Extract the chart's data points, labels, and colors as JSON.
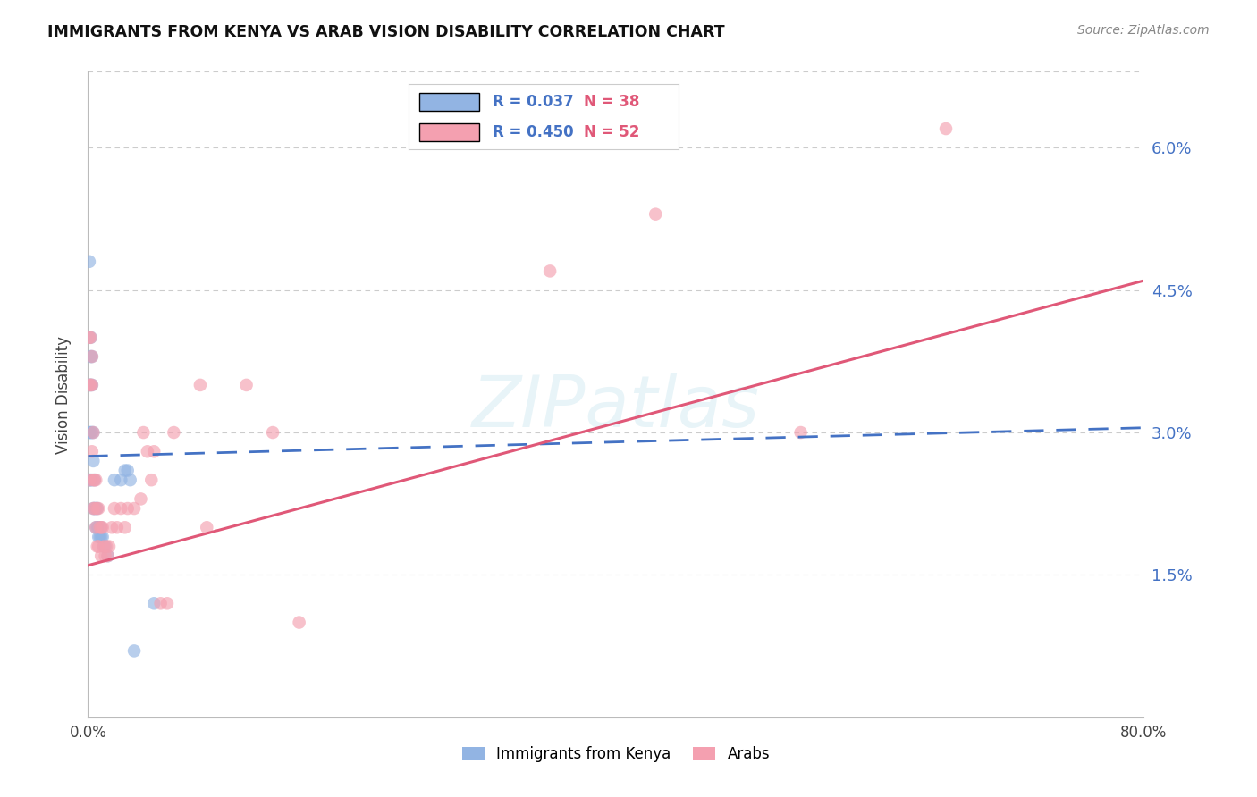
{
  "title": "IMMIGRANTS FROM KENYA VS ARAB VISION DISABILITY CORRELATION CHART",
  "source": "Source: ZipAtlas.com",
  "ylabel": "Vision Disability",
  "x_min": 0.0,
  "x_max": 0.8,
  "y_min": 0.0,
  "y_max": 0.068,
  "y_ticks": [
    0.0,
    0.015,
    0.03,
    0.045,
    0.06
  ],
  "y_tick_labels": [
    "",
    "1.5%",
    "3.0%",
    "4.5%",
    "6.0%"
  ],
  "x_ticks": [
    0.0,
    0.1,
    0.2,
    0.3,
    0.4,
    0.5,
    0.6,
    0.7,
    0.8
  ],
  "x_tick_labels": [
    "0.0%",
    "",
    "",
    "",
    "",
    "",
    "",
    "",
    "80.0%"
  ],
  "kenya_R": 0.037,
  "kenya_N": 38,
  "arab_R": 0.45,
  "arab_N": 52,
  "kenya_color": "#92b4e3",
  "arab_color": "#f4a0b0",
  "kenya_line_color": "#4472c4",
  "arab_line_color": "#e05878",
  "legend_label_kenya": "Immigrants from Kenya",
  "legend_label_arab": "Arabs",
  "watermark": "ZIPatlas",
  "background_color": "#ffffff",
  "grid_color": "#cccccc",
  "kenya_line_x": [
    0.0,
    0.8
  ],
  "kenya_line_y": [
    0.0275,
    0.0305
  ],
  "arab_line_x": [
    0.0,
    0.8
  ],
  "arab_line_y": [
    0.016,
    0.046
  ],
  "kenya_scatter_x": [
    0.001,
    0.001,
    0.001,
    0.001,
    0.002,
    0.002,
    0.002,
    0.002,
    0.002,
    0.003,
    0.003,
    0.003,
    0.003,
    0.004,
    0.004,
    0.004,
    0.005,
    0.005,
    0.006,
    0.006,
    0.007,
    0.007,
    0.008,
    0.008,
    0.009,
    0.01,
    0.01,
    0.011,
    0.012,
    0.013,
    0.015,
    0.02,
    0.025,
    0.028,
    0.03,
    0.032,
    0.035,
    0.05
  ],
  "kenya_scatter_y": [
    0.048,
    0.035,
    0.03,
    0.025,
    0.04,
    0.038,
    0.035,
    0.03,
    0.025,
    0.038,
    0.035,
    0.03,
    0.025,
    0.03,
    0.027,
    0.022,
    0.025,
    0.022,
    0.022,
    0.02,
    0.022,
    0.02,
    0.02,
    0.019,
    0.019,
    0.02,
    0.019,
    0.019,
    0.018,
    0.018,
    0.017,
    0.025,
    0.025,
    0.026,
    0.026,
    0.025,
    0.007,
    0.012
  ],
  "arab_scatter_x": [
    0.001,
    0.001,
    0.001,
    0.002,
    0.002,
    0.003,
    0.003,
    0.003,
    0.004,
    0.004,
    0.004,
    0.005,
    0.005,
    0.006,
    0.006,
    0.007,
    0.007,
    0.008,
    0.008,
    0.009,
    0.01,
    0.01,
    0.011,
    0.012,
    0.013,
    0.014,
    0.015,
    0.016,
    0.018,
    0.02,
    0.022,
    0.025,
    0.028,
    0.03,
    0.035,
    0.04,
    0.042,
    0.045,
    0.048,
    0.05,
    0.055,
    0.06,
    0.065,
    0.085,
    0.09,
    0.12,
    0.14,
    0.16,
    0.35,
    0.43,
    0.54,
    0.65
  ],
  "arab_scatter_y": [
    0.04,
    0.035,
    0.025,
    0.04,
    0.035,
    0.038,
    0.035,
    0.028,
    0.03,
    0.025,
    0.022,
    0.025,
    0.022,
    0.025,
    0.02,
    0.022,
    0.018,
    0.022,
    0.018,
    0.02,
    0.02,
    0.017,
    0.02,
    0.018,
    0.017,
    0.018,
    0.017,
    0.018,
    0.02,
    0.022,
    0.02,
    0.022,
    0.02,
    0.022,
    0.022,
    0.023,
    0.03,
    0.028,
    0.025,
    0.028,
    0.012,
    0.012,
    0.03,
    0.035,
    0.02,
    0.035,
    0.03,
    0.01,
    0.047,
    0.053,
    0.03,
    0.062
  ]
}
